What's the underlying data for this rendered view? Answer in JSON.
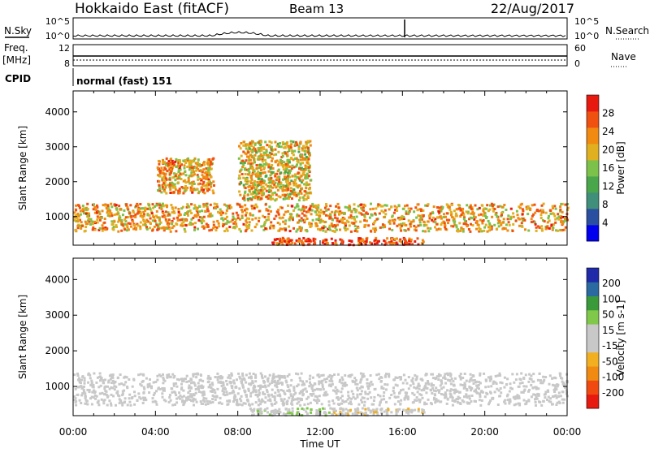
{
  "header": {
    "station": "Hokkaido East (fitACF)",
    "beam": "Beam 13",
    "date": "22/Aug/2017"
  },
  "top_panels": {
    "nsky_label": "N.Sky",
    "nsky_ticks_left": [
      "10^5",
      "10^0"
    ],
    "nsky_ticks_right": [
      "10^5",
      "10^0"
    ],
    "nsearch_label": "N.Search",
    "freq_label_1": "Freq.",
    "freq_label_2": "[MHz]",
    "freq_ticks_left": [
      "12",
      "8"
    ],
    "freq_ticks_right": [
      "60",
      "0"
    ],
    "nave_label": "Nave",
    "cpid_label": "CPID",
    "cpid_value": "normal (fast) 151"
  },
  "colors": {
    "power_scale": [
      "#0000ee",
      "#2a4fa0",
      "#3f8f7a",
      "#4aa64a",
      "#7cc24a",
      "#e0b020",
      "#f08a10",
      "#f05010",
      "#e81a10"
    ],
    "velocity_scale": [
      "#e81a10",
      "#f04a10",
      "#f08a10",
      "#f2b020",
      "#c8c8c8",
      "#c8c8c8",
      "#80c84a",
      "#3a9a3a",
      "#2a6aa0",
      "#1e2aa8"
    ]
  },
  "chart_data": [
    {
      "type": "heatmap",
      "name": "power",
      "ylabel": "Slant Range [km]",
      "yticks": [
        "4000",
        "3000",
        "2000",
        "1000"
      ],
      "ylim": [
        180,
        4600
      ],
      "xlim": [
        0,
        24
      ],
      "colorbar_label": "Power [dB]",
      "colorbar_ticks": [
        "28",
        "24",
        "20",
        "16",
        "12",
        "8",
        "4"
      ],
      "colorbar_range": [
        0,
        32
      ],
      "features": [
        {
          "t": [
            0,
            24
          ],
          "range": [
            600,
            1400
          ],
          "value": 22
        },
        {
          "t": [
            9.5,
            17
          ],
          "range": [
            220,
            420
          ],
          "value": 28
        },
        {
          "t": [
            4,
            6.8
          ],
          "range": [
            1700,
            2700
          ],
          "value": 22
        },
        {
          "t": [
            8,
            11.5
          ],
          "range": [
            1500,
            3200
          ],
          "value": 20
        }
      ]
    },
    {
      "type": "heatmap",
      "name": "velocity",
      "ylabel": "Slant Range [km]",
      "yticks": [
        "4000",
        "3000",
        "2000",
        "1000"
      ],
      "ylim": [
        180,
        4600
      ],
      "xlim": [
        0,
        24
      ],
      "colorbar_label": "Velocity [m s-1]",
      "colorbar_ticks": [
        "200",
        "100",
        "50",
        "15",
        "-15",
        "-50",
        "-100",
        "-200"
      ],
      "colorbar_range": [
        -250,
        250
      ],
      "features": [
        {
          "t": [
            0,
            24
          ],
          "range": [
            500,
            1400
          ],
          "value": 0
        },
        {
          "t": [
            8.5,
            12.5
          ],
          "range": [
            220,
            420
          ],
          "value": 40
        },
        {
          "t": [
            12.5,
            17
          ],
          "range": [
            220,
            420
          ],
          "value": -30
        }
      ]
    }
  ],
  "x_axis": {
    "ticks": [
      "00:00",
      "04:00",
      "08:00",
      "12:00",
      "16:00",
      "20:00",
      "00:00"
    ],
    "label": "Time UT"
  }
}
